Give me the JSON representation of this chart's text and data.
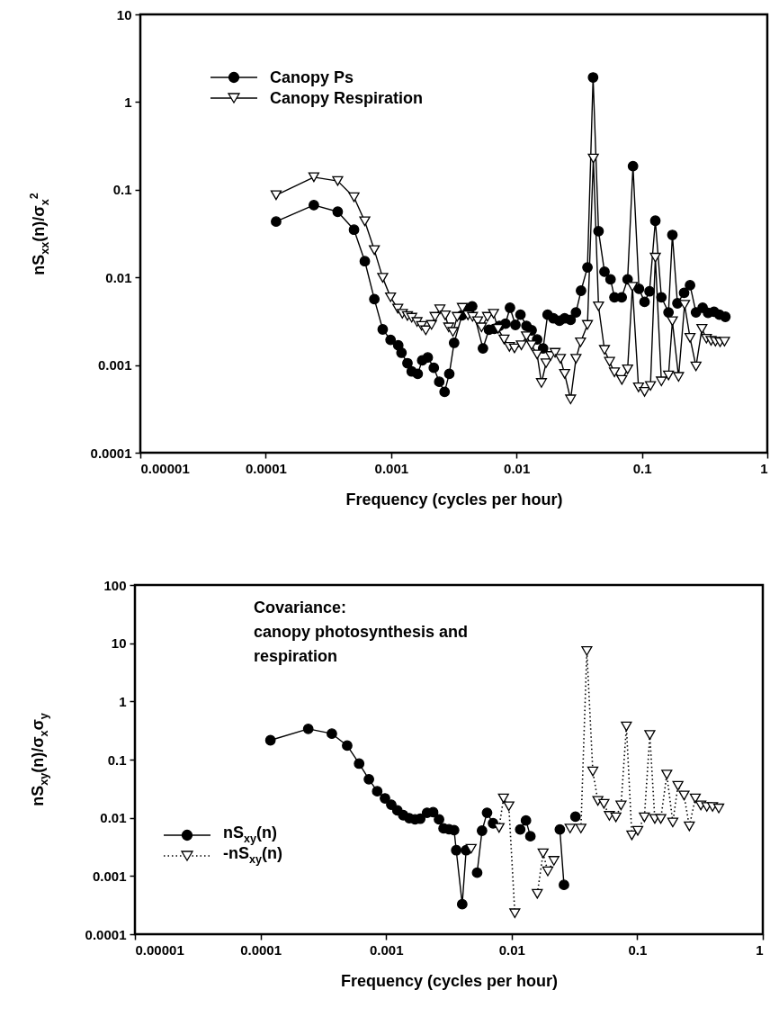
{
  "chart_data": [
    {
      "type": "line",
      "xlabel": "Frequency (cycles per hour)",
      "ylabel": "nS$_{xx}$(n)/σ$_{x}$$^{2}$",
      "log": "xy",
      "xlim": [
        1e-05,
        1
      ],
      "ylim": [
        0.0001,
        10
      ],
      "xticks": [
        {
          "value": 1e-05,
          "label": "0.00001"
        },
        0.0001,
        0.001,
        0.01,
        0.1,
        1
      ],
      "yticks": [
        0.0001,
        0.001,
        0.01,
        0.1,
        1,
        10
      ],
      "grid": false,
      "legend": "top left",
      "series": [
        {
          "name": "Canopy Ps",
          "color": "#000000",
          "marker": "circle",
          "line_style": "solid",
          "x": [
            0.000121,
            0.000242,
            0.000375,
            0.000506,
            0.000617,
            0.000735,
            0.000857,
            0.00099,
            0.00114,
            0.00121,
            0.00135,
            0.00146,
            0.00163,
            0.00177,
            0.00196,
            0.00219,
            0.00242,
            0.00267,
            0.00291,
            0.00318,
            0.00367,
            0.0041,
            0.00443,
            0.0054,
            0.00603,
            0.00665,
            0.0073,
            0.00817,
            0.00887,
            0.0098,
            0.01075,
            0.012,
            0.0132,
            0.0146,
            0.0163,
            0.0177,
            0.0197,
            0.022,
            0.0242,
            0.027,
            0.0298,
            0.0327,
            0.0368,
            0.0408,
            0.0451,
            0.0503,
            0.0562,
            0.0604,
            0.069,
            0.0769,
            0.0849,
            0.0948,
            0.105,
            0.115,
            0.128,
            0.143,
            0.163,
            0.175,
            0.192,
            0.217,
            0.242,
            0.27,
            0.305,
            0.337,
            0.376,
            0.415,
            0.463
          ],
          "values": [
            0.0433,
            0.0667,
            0.0561,
            0.035,
            0.0153,
            0.00565,
            0.00255,
            0.00194,
            0.00168,
            0.00138,
            0.00105,
            0.000845,
            0.000794,
            0.00113,
            0.00122,
            0.00093,
            0.000645,
            0.000495,
            0.000795,
            0.00179,
            0.00369,
            0.00432,
            0.00468,
            0.00155,
            0.00253,
            0.00259,
            0.0028,
            0.00296,
            0.0045,
            0.00287,
            0.00375,
            0.0028,
            0.00249,
            0.00196,
            0.00155,
            0.00375,
            0.00341,
            0.0032,
            0.00341,
            0.00328,
            0.00399,
            0.00705,
            0.013,
            1.91,
            0.0336,
            0.0116,
            0.0095,
            0.00593,
            0.00593,
            0.0095,
            0.186,
            0.0074,
            0.00526,
            0.00693,
            0.0443,
            0.00593,
            0.00399,
            0.0305,
            0.00506,
            0.00667,
            0.00813,
            0.00399,
            0.0045,
            0.00394,
            0.00406,
            0.00375,
            0.00355
          ]
        },
        {
          "name": "Canopy Respiration",
          "color": "#000000",
          "marker": "triangle",
          "line_style": "solid",
          "x": [
            0.000121,
            0.000242,
            0.000375,
            0.000506,
            0.000617,
            0.000735,
            0.000857,
            0.00099,
            0.00113,
            0.00123,
            0.00135,
            0.00146,
            0.00161,
            0.00175,
            0.00189,
            0.0021,
            0.00224,
            0.00245,
            0.0027,
            0.00288,
            0.00311,
            0.00337,
            0.0037,
            0.0041,
            0.00446,
            0.0049,
            0.00526,
            0.00587,
            0.00656,
            0.00713,
            0.00796,
            0.00878,
            0.00964,
            0.01093,
            0.012,
            0.0132,
            0.0146,
            0.0158,
            0.0172,
            0.0187,
            0.0203,
            0.0224,
            0.0242,
            0.027,
            0.0298,
            0.0324,
            0.0368,
            0.041,
            0.0451,
            0.0503,
            0.0552,
            0.0604,
            0.0692,
            0.0769,
            0.084,
            0.094,
            0.105,
            0.117,
            0.128,
            0.143,
            0.163,
            0.175,
            0.196,
            0.219,
            0.242,
            0.27,
            0.301,
            0.327,
            0.356,
            0.386,
            0.42,
            0.456
          ],
          "values": [
            0.0865,
            0.139,
            0.1257,
            0.082,
            0.0436,
            0.0205,
            0.0099,
            0.00593,
            0.0044,
            0.00385,
            0.00363,
            0.00347,
            0.0031,
            0.0028,
            0.00249,
            0.00287,
            0.00355,
            0.00432,
            0.00369,
            0.00269,
            0.00239,
            0.00355,
            0.0045,
            0.00369,
            0.00355,
            0.00316,
            0.00269,
            0.00355,
            0.00385,
            0.00259,
            0.00196,
            0.00161,
            0.00155,
            0.00168,
            0.00213,
            0.00168,
            0.00132,
            0.000625,
            0.00105,
            0.00127,
            0.00138,
            0.00118,
            0.000794,
            0.000406,
            0.00118,
            0.00182,
            0.00287,
            0.227,
            0.00468,
            0.00149,
            0.00109,
            0.000826,
            0.000677,
            0.000893,
            0.00782,
            0.000556,
            0.000494,
            0.000578,
            0.0168,
            0.000651,
            0.000762,
            0.00316,
            0.000733,
            0.00488,
            0.00204,
            0.000966,
            0.00259,
            0.002,
            0.00189,
            0.00185,
            0.00182,
            0.00185
          ]
        }
      ]
    },
    {
      "type": "line",
      "xlabel": "Frequency (cycles per hour)",
      "ylabel": "nS$_{xy}$(n)/σ$_{x}$σ$_{y}$",
      "log": "xy",
      "xlim": [
        1e-05,
        1
      ],
      "ylim": [
        0.0001,
        100
      ],
      "xticks": [
        {
          "value": 1e-05,
          "label": "0.00001"
        },
        0.0001,
        0.001,
        0.01,
        0.1,
        1
      ],
      "yticks": [
        0.0001,
        0.001,
        0.01,
        0.1,
        1,
        10,
        100
      ],
      "grid": false,
      "legend": "left",
      "annotations": [
        "Covariance:\ncanopy photosynthesis and\nrespiration"
      ],
      "x": [
        0.00012,
        0.00024,
        0.00037,
        0.00049,
        0.00061,
        0.00073,
        0.00085,
        0.00098,
        0.0011,
        0.00123,
        0.00137,
        0.00153,
        0.0017,
        0.00187,
        0.00212,
        0.00237,
        0.00264,
        0.00287,
        0.00317,
        0.00348,
        0.00362,
        0.00404,
        0.00434,
        0.00476,
        0.00531,
        0.00581,
        0.00637,
        0.00711,
        0.00794,
        0.00861,
        0.0095,
        0.0106,
        0.0117,
        0.013,
        0.0141,
        0.016,
        0.0178,
        0.0194,
        0.0217,
        0.0242,
        0.0261,
        0.0292,
        0.0322,
        0.0356,
        0.0397,
        0.0443,
        0.0486,
        0.0543,
        0.06,
        0.0676,
        0.0743,
        0.082,
        0.0906,
        0.101,
        0.114,
        0.126,
        0.138,
        0.154,
        0.172,
        0.192,
        0.211,
        0.236,
        0.26,
        0.29,
        0.321,
        0.358,
        0.398,
        0.446
      ],
      "series": [
        {
          "name": "nS$_{xy}$(n)",
          "color": "#000000",
          "marker": "circle",
          "line_style": "solid",
          "values": [
            0.215,
            0.337,
            0.279,
            0.174,
            0.0853,
            0.046,
            0.0286,
            0.0216,
            0.0168,
            0.0134,
            0.0111,
            0.00986,
            0.0094,
            0.00963,
            0.0122,
            0.0125,
            0.0094,
            0.00659,
            0.00636,
            0.00614,
            0.00277,
            0.000328,
            0.00277,
            null,
            0.00114,
            0.006,
            0.0122,
            0.00805,
            null,
            null,
            null,
            null,
            0.00632,
            0.009,
            0.00482,
            null,
            null,
            null,
            null,
            0.00632,
            0.000705,
            null,
            0.0105,
            null,
            null,
            null,
            null,
            null,
            null,
            null,
            null,
            null,
            null,
            null,
            null,
            null,
            null,
            null,
            null,
            null,
            null,
            null,
            null,
            null,
            null,
            null,
            null,
            null
          ]
        },
        {
          "name": "-nS$_{xy}$(n)",
          "color": "#000000",
          "marker": "triangle",
          "line_style": "dotted",
          "values": [
            null,
            null,
            null,
            null,
            null,
            null,
            null,
            null,
            null,
            null,
            null,
            null,
            null,
            null,
            null,
            null,
            null,
            null,
            null,
            null,
            null,
            null,
            null,
            0.00294,
            null,
            null,
            null,
            null,
            0.00671,
            0.0215,
            0.0158,
            0.000229,
            null,
            null,
            null,
            0.000494,
            0.00245,
            0.0012,
            0.00182,
            null,
            null,
            0.00655,
            null,
            0.00655,
            7.36,
            0.0625,
            0.0195,
            0.0174,
            0.0108,
            0.0102,
            0.0163,
            0.371,
            0.005,
            0.00597,
            0.0102,
            0.265,
            0.00958,
            0.00958,
            0.0553,
            0.00832,
            0.0354,
            0.0242,
            0.00713,
            0.0215,
            0.0163,
            0.0154,
            0.0154,
            0.0145
          ]
        }
      ]
    }
  ]
}
